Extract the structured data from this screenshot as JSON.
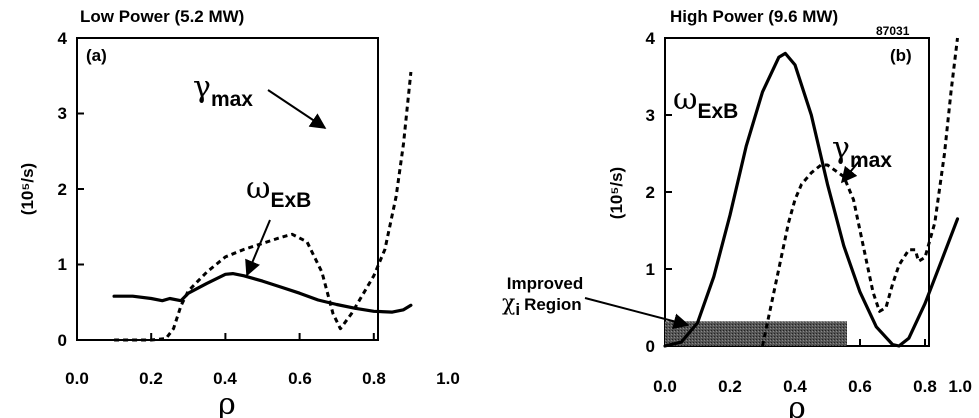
{
  "chart_data": [
    {
      "type": "line",
      "title": "Low Power (5.2 MW)",
      "panel_label": "(a)",
      "xlabel": "ρ",
      "ylabel": "(10⁵/s)",
      "xlim": [
        0,
        1.0
      ],
      "ylim": [
        0,
        4
      ],
      "xticks": [
        "0.0",
        "0.2",
        "0.4",
        "0.6",
        "0.8",
        "1.0"
      ],
      "yticks": [
        "0",
        "1",
        "2",
        "3",
        "4"
      ],
      "grid": false,
      "series": [
        {
          "name": "ωExB",
          "symbol": "ω",
          "subscript": "ExB",
          "style": "solid",
          "x": [
            0.1,
            0.15,
            0.2,
            0.23,
            0.25,
            0.28,
            0.3,
            0.35,
            0.4,
            0.42,
            0.45,
            0.5,
            0.55,
            0.6,
            0.65,
            0.7,
            0.75,
            0.8,
            0.85,
            0.88,
            0.9
          ],
          "y": [
            0.58,
            0.58,
            0.55,
            0.52,
            0.55,
            0.52,
            0.62,
            0.75,
            0.87,
            0.88,
            0.85,
            0.78,
            0.7,
            0.62,
            0.53,
            0.47,
            0.42,
            0.38,
            0.37,
            0.4,
            0.46
          ]
        },
        {
          "name": "γmax",
          "symbol": "γ",
          "subscript": "max",
          "style": "dashed",
          "x": [
            0.1,
            0.15,
            0.2,
            0.24,
            0.26,
            0.28,
            0.3,
            0.35,
            0.4,
            0.45,
            0.5,
            0.55,
            0.58,
            0.62,
            0.66,
            0.69,
            0.71,
            0.74,
            0.77,
            0.8,
            0.83,
            0.86,
            0.88,
            0.9
          ],
          "y": [
            0.0,
            0.0,
            0.0,
            0.02,
            0.15,
            0.45,
            0.65,
            0.9,
            1.1,
            1.2,
            1.28,
            1.36,
            1.4,
            1.3,
            0.9,
            0.35,
            0.15,
            0.35,
            0.6,
            0.85,
            1.2,
            1.9,
            2.6,
            3.55
          ]
        }
      ],
      "annotations": [
        {
          "target": "γmax",
          "text": "γmax"
        },
        {
          "target": "ωExB",
          "text": "ωExB"
        }
      ]
    },
    {
      "type": "line",
      "title": "High Power (9.6 MW)",
      "panel_label": "(b)",
      "shot_number": "87031",
      "xlabel": "ρ",
      "ylabel": "(10⁵/s)",
      "xlim": [
        0,
        1.0
      ],
      "ylim": [
        0,
        4
      ],
      "xticks": [
        "0.0",
        "0.2",
        "0.4",
        "0.6",
        "0.8",
        "1.0"
      ],
      "yticks": [
        "0",
        "1",
        "2",
        "3",
        "4"
      ],
      "grid": false,
      "series": [
        {
          "name": "ωExB",
          "symbol": "ω",
          "subscript": "ExB",
          "style": "solid",
          "x": [
            0.0,
            0.05,
            0.1,
            0.15,
            0.2,
            0.25,
            0.3,
            0.35,
            0.37,
            0.4,
            0.45,
            0.5,
            0.55,
            0.6,
            0.65,
            0.7,
            0.72,
            0.75,
            0.8,
            0.85,
            0.9
          ],
          "y": [
            0.0,
            0.05,
            0.3,
            0.9,
            1.7,
            2.6,
            3.3,
            3.75,
            3.8,
            3.65,
            3.0,
            2.1,
            1.3,
            0.7,
            0.25,
            0.02,
            0.0,
            0.1,
            0.55,
            1.1,
            1.65
          ]
        },
        {
          "name": "γmax",
          "symbol": "γ",
          "subscript": "max",
          "style": "dashed",
          "x": [
            0.3,
            0.32,
            0.35,
            0.38,
            0.4,
            0.42,
            0.45,
            0.48,
            0.5,
            0.55,
            0.58,
            0.6,
            0.62,
            0.64,
            0.66,
            0.68,
            0.7,
            0.72,
            0.75,
            0.77,
            0.78,
            0.8,
            0.83,
            0.86,
            0.88,
            0.9
          ],
          "y": [
            0.0,
            0.4,
            1.0,
            1.6,
            1.9,
            2.1,
            2.25,
            2.35,
            2.35,
            2.2,
            1.9,
            1.5,
            1.1,
            0.7,
            0.45,
            0.5,
            0.8,
            1.05,
            1.25,
            1.25,
            1.1,
            1.15,
            1.6,
            2.5,
            3.3,
            4.0
          ]
        }
      ],
      "region": {
        "label": "Improved χi Region",
        "x_from": 0.0,
        "x_to": 0.56,
        "y_from": 0.0,
        "y_to": 0.32
      },
      "annotations": [
        {
          "target": "γmax",
          "text": "γmax"
        },
        {
          "target": "ωExB",
          "text": "ωExB"
        },
        {
          "target": "region",
          "text": "Improved χi Region"
        }
      ]
    }
  ]
}
